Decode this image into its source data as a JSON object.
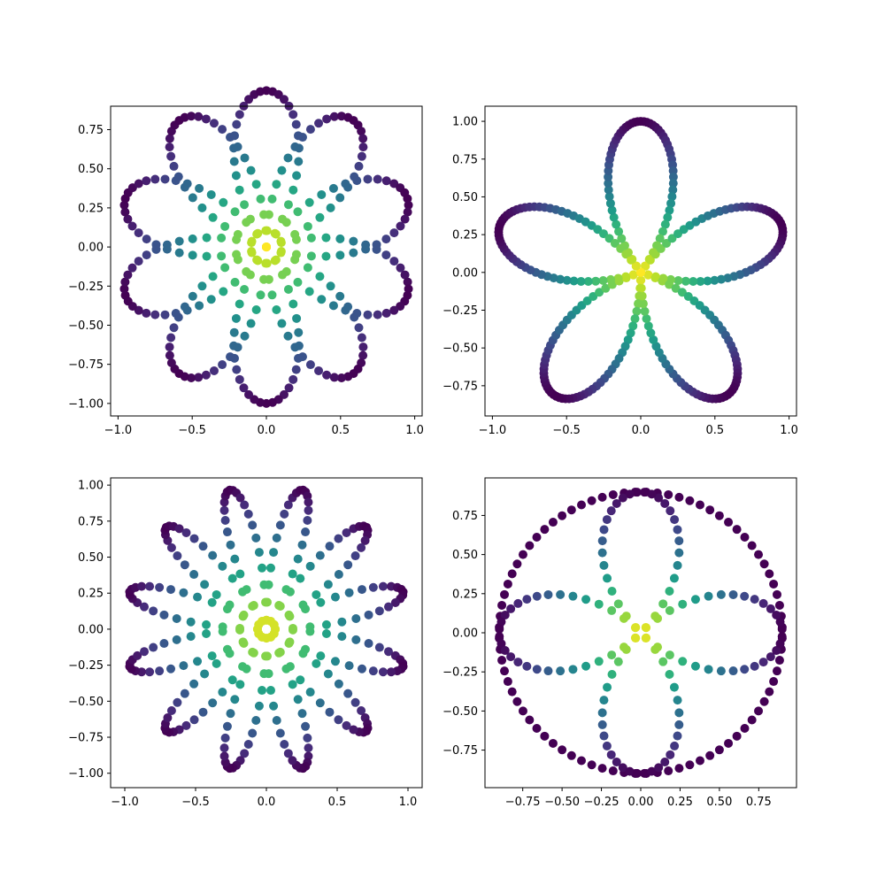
{
  "chart_data": [
    {
      "type": "scatter",
      "title": "",
      "xlabel": "",
      "ylabel": "",
      "curve": "rose r = sin(5t/2)",
      "point_count": 300,
      "colormap": "viridis (purple at outer radius, yellow at center)",
      "xlim": [
        -1.05,
        1.05
      ],
      "ylim": [
        -1.08,
        0.9
      ],
      "xticks": [
        -1.0,
        -0.5,
        0.0,
        0.5,
        1.0
      ],
      "xtick_labels": [
        "−1.0",
        "−0.5",
        "0.0",
        "0.5",
        "1.0"
      ],
      "yticks": [
        -1.0,
        -0.75,
        -0.5,
        -0.25,
        0.0,
        0.25,
        0.5,
        0.75
      ],
      "ytick_labels": [
        "−1.00",
        "−0.75",
        "−0.50",
        "−0.25",
        "0.00",
        "0.25",
        "0.50",
        "0.75"
      ],
      "grid": false
    },
    {
      "type": "scatter",
      "title": "",
      "xlabel": "",
      "ylabel": "",
      "curve": "r = |cos(5t/2)|",
      "point_count": 300,
      "colormap": "viridis (purple at outer radius, yellow at center)",
      "xlim": [
        -1.05,
        1.05
      ],
      "ylim": [
        -0.95,
        1.1
      ],
      "xticks": [
        -1.0,
        -0.5,
        0.0,
        0.5,
        1.0
      ],
      "xtick_labels": [
        "−1.0",
        "−0.5",
        "0.0",
        "0.5",
        "1.0"
      ],
      "yticks": [
        -0.75,
        -0.5,
        -0.25,
        0.0,
        0.25,
        0.5,
        0.75,
        1.0
      ],
      "ytick_labels": [
        "−0.75",
        "−0.50",
        "−0.25",
        "0.00",
        "0.25",
        "0.50",
        "0.75",
        "1.00"
      ],
      "grid": false
    },
    {
      "type": "scatter",
      "title": "",
      "xlabel": "",
      "ylabel": "",
      "curve": "rose r = sin(6t), petals sampled discretely",
      "point_count": 300,
      "colormap": "viridis (purple at outer radius, yellow at center)",
      "xlim": [
        -1.1,
        1.1
      ],
      "ylim": [
        -1.1,
        1.05
      ],
      "xticks": [
        -1.0,
        -0.5,
        0.0,
        0.5,
        1.0
      ],
      "xtick_labels": [
        "−1.0",
        "−0.5",
        "0.0",
        "0.5",
        "1.0"
      ],
      "yticks": [
        -1.0,
        -0.75,
        -0.5,
        -0.25,
        0.0,
        0.25,
        0.5,
        0.75,
        1.0
      ],
      "ytick_labels": [
        "−1.00",
        "−0.75",
        "−0.50",
        "−0.25",
        "0.00",
        "0.25",
        "0.50",
        "0.75",
        "1.00"
      ],
      "grid": false
    },
    {
      "type": "scatter",
      "title": "",
      "xlabel": "",
      "ylabel": "",
      "curve": "outer circle r = 0.9 plus 4-petal rose r = 0.9·|cos 2t|",
      "point_count": 200,
      "colormap": "viridis (purple at outer radius, yellow at center)",
      "xlim": [
        -0.99,
        0.99
      ],
      "ylim": [
        -0.99,
        0.99
      ],
      "xticks": [
        -0.75,
        -0.5,
        -0.25,
        0.0,
        0.25,
        0.5,
        0.75
      ],
      "xtick_labels": [
        "−0.75",
        "−0.50",
        "−0.25",
        "0.00",
        "0.25",
        "0.50",
        "0.75"
      ],
      "yticks": [
        -0.75,
        -0.5,
        -0.25,
        0.0,
        0.25,
        0.5,
        0.75
      ],
      "ytick_labels": [
        "−0.75",
        "−0.50",
        "−0.25",
        "0.00",
        "0.25",
        "0.50",
        "0.75"
      ],
      "grid": false
    }
  ]
}
